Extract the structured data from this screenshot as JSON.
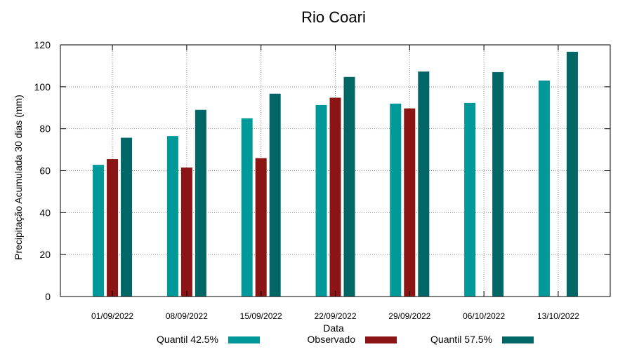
{
  "chart_data": {
    "type": "bar",
    "title": "Rio Coari",
    "xlabel": "Data",
    "ylabel": "Precipitação Acumulada 30 dias (mm)",
    "ylim": [
      0,
      120
    ],
    "yticks": [
      0,
      20,
      40,
      60,
      80,
      100,
      120
    ],
    "grid": true,
    "legend_position": "bottom",
    "categories": [
      "01/09/2022",
      "08/09/2022",
      "15/09/2022",
      "22/09/2022",
      "29/09/2022",
      "06/10/2022",
      "13/10/2022"
    ],
    "series": [
      {
        "name": "Quantil 42.5%",
        "color": "#009999",
        "values": [
          62.8,
          76.5,
          85.0,
          91.3,
          92.0,
          92.3,
          103.0
        ]
      },
      {
        "name": "Observado",
        "color": "#8b1414",
        "values": [
          65.5,
          61.5,
          66.0,
          94.8,
          89.7,
          null,
          null
        ]
      },
      {
        "name": "Quantil 57.5%",
        "color": "#006666",
        "values": [
          75.7,
          89.0,
          96.7,
          104.7,
          107.3,
          107.0,
          116.7
        ]
      }
    ]
  }
}
